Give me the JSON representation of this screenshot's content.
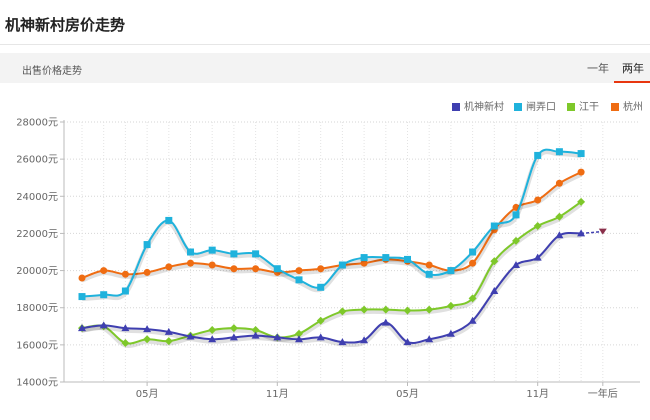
{
  "page": {
    "title": "机神新村房价走势"
  },
  "tabs": {
    "label": "出售价格走势",
    "one_year": "一年",
    "two_year": "两年"
  },
  "chart_data": {
    "type": "line",
    "title": "",
    "xlabel": "",
    "ylabel": "",
    "ylim": [
      14000,
      28000
    ],
    "y_ticks": [
      "14000元",
      "16000元",
      "18000元",
      "20000元",
      "22000元",
      "24000元",
      "26000元",
      "28000元"
    ],
    "y_tick_values": [
      14000,
      16000,
      18000,
      20000,
      22000,
      24000,
      26000,
      28000
    ],
    "x_ticks": [
      {
        "label": "05月",
        "index": 3
      },
      {
        "label": "11月",
        "index": 9
      },
      {
        "label": "05月",
        "index": 15
      },
      {
        "label": "11月",
        "index": 21
      },
      {
        "label": "一年后",
        "index": 24
      }
    ],
    "grid": true,
    "legend_position": "top-right",
    "series": [
      {
        "name": "机神新村",
        "color": "#3f3fb0",
        "marker": "triangle",
        "values": [
          16900,
          17050,
          16900,
          16850,
          16700,
          16450,
          16300,
          16400,
          16500,
          16400,
          16300,
          16400,
          16150,
          16250,
          17200,
          16150,
          16300,
          16600,
          17300,
          18900,
          20300,
          20700,
          21900,
          22000
        ],
        "forecast": 22100
      },
      {
        "name": "闸弄口",
        "color": "#1fb2dc",
        "marker": "square",
        "values": [
          18600,
          18700,
          18900,
          21400,
          22700,
          21000,
          21100,
          20900,
          20900,
          20100,
          19500,
          19100,
          20300,
          20700,
          20700,
          20600,
          19800,
          20000,
          21000,
          22400,
          23000,
          26200,
          26400,
          26300
        ]
      },
      {
        "name": "江干",
        "color": "#7ec82a",
        "marker": "diamond",
        "values": [
          16900,
          17000,
          16100,
          16300,
          16200,
          16500,
          16800,
          16900,
          16800,
          16400,
          16600,
          17300,
          17800,
          17900,
          17900,
          17850,
          17900,
          18100,
          18500,
          20500,
          21600,
          22400,
          22900,
          23700
        ]
      },
      {
        "name": "杭州",
        "color": "#ef6c12",
        "marker": "circle",
        "values": [
          19600,
          20000,
          19800,
          19900,
          20200,
          20400,
          20300,
          20100,
          20100,
          19900,
          20000,
          20100,
          20300,
          20400,
          20600,
          20500,
          20300,
          20000,
          20400,
          22200,
          23400,
          23800,
          24700,
          25300
        ]
      }
    ]
  }
}
